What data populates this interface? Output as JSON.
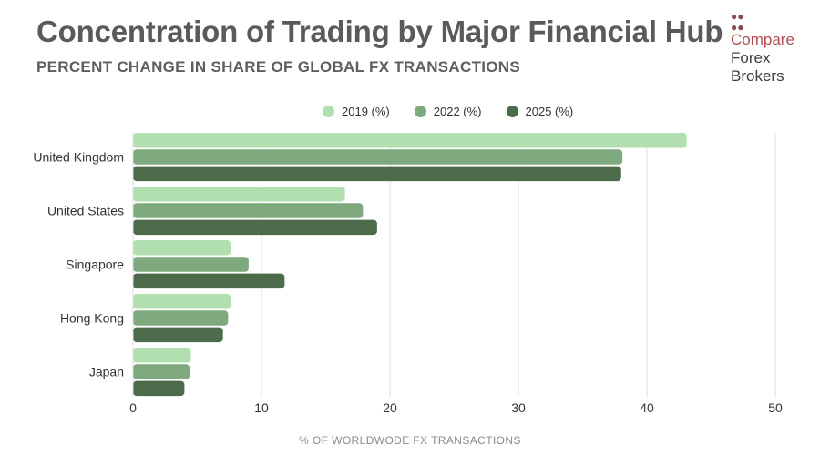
{
  "header": {
    "title": "Concentration of Trading by Major Financial Hub",
    "subtitle": "PERCENT CHANGE IN SHARE OF GLOBAL FX TRANSACTIONS"
  },
  "logo": {
    "icon": "compare-forex-brokers-logo-icon",
    "line1": "Compare",
    "line2": "Forex",
    "line3": "Brokers"
  },
  "colors": {
    "s2019": "#b1dfb0",
    "s2022": "#7ea87e",
    "s2025": "#4b6b4b",
    "grid": "#dcdcdc",
    "axis_text": "#333333",
    "xlabel_text": "#8a8a8a"
  },
  "chart_data": {
    "type": "bar",
    "orientation": "horizontal",
    "title": "Concentration of Trading by Major Financial Hub",
    "subtitle": "PERCENT CHANGE IN SHARE OF GLOBAL FX TRANSACTIONS",
    "categories": [
      "United Kingdom",
      "United States",
      "Singapore",
      "Hong Kong",
      "Japan"
    ],
    "series": [
      {
        "name": "2019 (%)",
        "values": [
          43.1,
          16.5,
          7.6,
          7.6,
          4.5
        ]
      },
      {
        "name": "2022 (%)",
        "values": [
          38.1,
          17.9,
          9.0,
          7.4,
          4.4
        ]
      },
      {
        "name": "2025 (%)",
        "values": [
          38.0,
          19.0,
          11.8,
          7.0,
          4.0
        ]
      }
    ],
    "xlabel": "% OF WORLDWODE FX TRANSACTIONS",
    "ylabel": "",
    "xlim": [
      0,
      50
    ],
    "xticks": [
      "0",
      "10",
      "20",
      "30",
      "40",
      "50"
    ],
    "grid": true,
    "legend_position": "top"
  }
}
